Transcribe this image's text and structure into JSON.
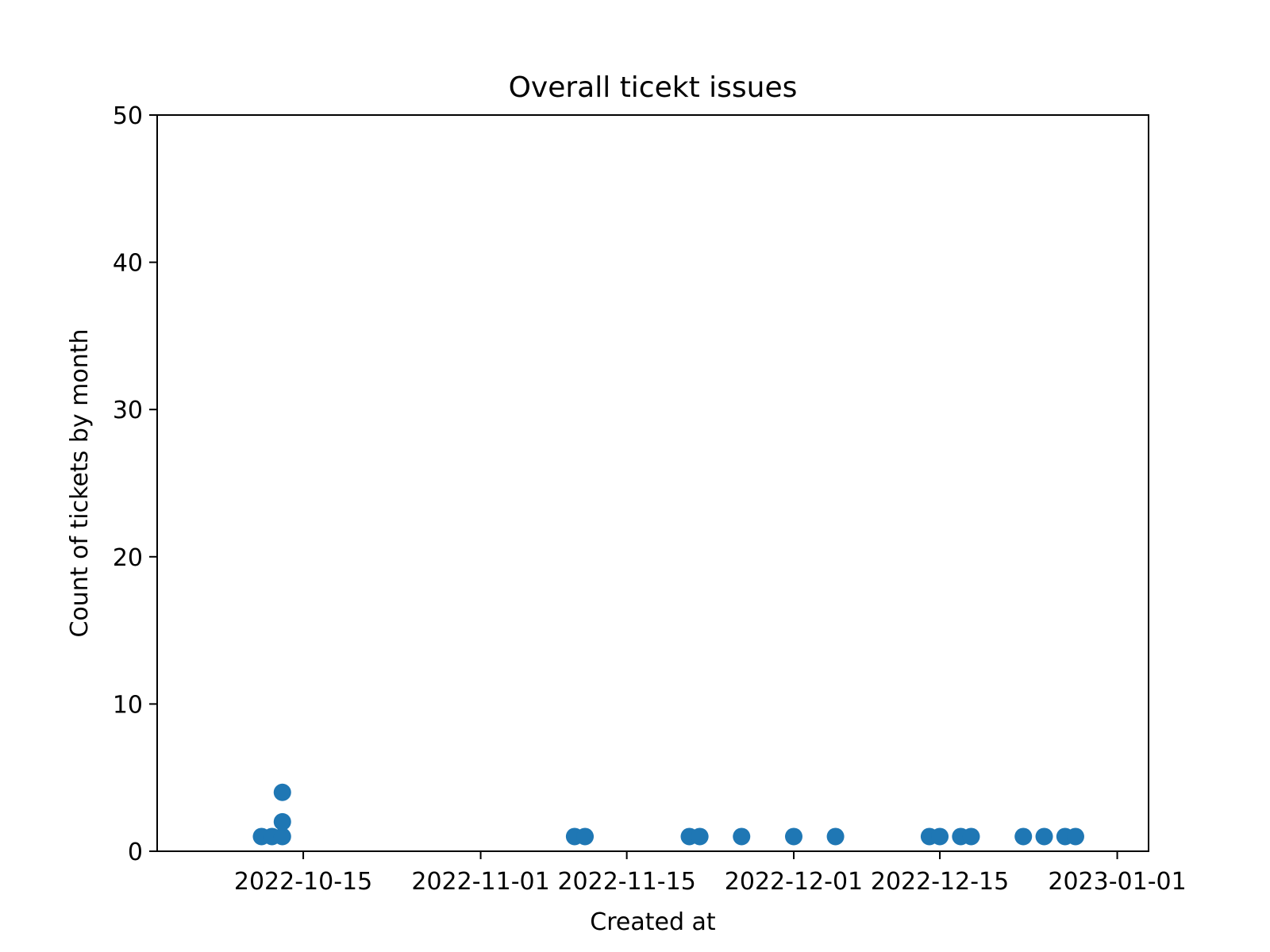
{
  "chart_data": {
    "type": "scatter",
    "title": "Overall ticekt issues",
    "xlabel": "Created at",
    "ylabel": "Count of tickets by month",
    "xlim": [
      "2022-10-01",
      "2023-01-04"
    ],
    "ylim": [
      0,
      50
    ],
    "xticks": [
      "2022-10-15",
      "2022-11-01",
      "2022-11-15",
      "2022-12-01",
      "2022-12-15",
      "2023-01-01"
    ],
    "yticks": [
      "0",
      "10",
      "20",
      "30",
      "40",
      "50"
    ],
    "grid": false,
    "series": [
      {
        "color": "#1f77b4",
        "points": [
          {
            "x": "2022-10-11",
            "y": 1
          },
          {
            "x": "2022-10-12",
            "y": 1
          },
          {
            "x": "2022-10-13",
            "y": 1
          },
          {
            "x": "2022-10-13",
            "y": 2
          },
          {
            "x": "2022-10-13",
            "y": 4
          },
          {
            "x": "2022-11-10",
            "y": 1
          },
          {
            "x": "2022-11-11",
            "y": 1
          },
          {
            "x": "2022-11-21",
            "y": 1
          },
          {
            "x": "2022-11-22",
            "y": 1
          },
          {
            "x": "2022-11-26",
            "y": 1
          },
          {
            "x": "2022-12-01",
            "y": 1
          },
          {
            "x": "2022-12-05",
            "y": 1
          },
          {
            "x": "2022-12-14",
            "y": 1
          },
          {
            "x": "2022-12-15",
            "y": 1
          },
          {
            "x": "2022-12-17",
            "y": 1
          },
          {
            "x": "2022-12-18",
            "y": 1
          },
          {
            "x": "2022-12-23",
            "y": 1
          },
          {
            "x": "2022-12-25",
            "y": 1
          },
          {
            "x": "2022-12-27",
            "y": 1
          },
          {
            "x": "2022-12-28",
            "y": 1
          }
        ]
      }
    ]
  }
}
